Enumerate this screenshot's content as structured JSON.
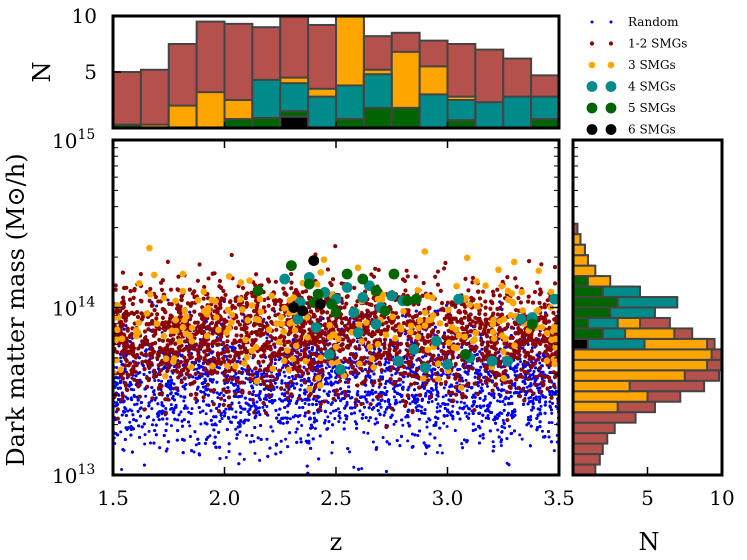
{
  "chart_data": {
    "type": "scatter",
    "x_label": "z",
    "y_label": "Dark matter mass (M⊙/h)",
    "xlim": [
      1.5,
      3.5
    ],
    "ylim_log10": [
      13,
      15
    ],
    "x_ticks": [
      "1.5",
      "2.0",
      "2.5",
      "3.0",
      "3.5"
    ],
    "y_ticks": [
      {
        "base": "10",
        "exp": "13"
      },
      {
        "base": "10",
        "exp": "14"
      },
      {
        "base": "10",
        "exp": "15"
      }
    ],
    "legend": [
      {
        "label": "Random",
        "color": "#0000ee"
      },
      {
        "label": "1-2 SMGs",
        "color": "#8b0000"
      },
      {
        "label": "3 SMGs",
        "color": "#ffa500"
      },
      {
        "label": "4 SMGs",
        "color": "#008b8b"
      },
      {
        "label": "5 SMGs",
        "color": "#006400"
      },
      {
        "label": "6 SMGs",
        "color": "#000000"
      }
    ],
    "colors": {
      "random": "#0000ee",
      "smg12_point": "#8b0000",
      "smg12_bar": "#b5514d",
      "smg3": "#ffa500",
      "smg4": "#008b8b",
      "smg5": "#006400",
      "smg6": "#000000"
    },
    "top_hist": {
      "xlabel": "",
      "ylabel": "N",
      "ylim": [
        0,
        10
      ],
      "y_ticks": [
        "5",
        "10"
      ],
      "bins": [
        1.5,
        1.625,
        1.75,
        1.875,
        2.0,
        2.125,
        2.25,
        2.375,
        2.5,
        2.625,
        2.75,
        2.875,
        3.0,
        3.125,
        3.25,
        3.375,
        3.5
      ],
      "series": [
        {
          "name": "1-2 SMGs",
          "values": [
            5.0,
            5.2,
            7.5,
            9.5,
            9.3,
            9.0,
            10.0,
            9.2,
            9.5,
            8.2,
            8.5,
            7.8,
            7.5,
            7.0,
            6.2,
            4.7
          ]
        },
        {
          "name": "3 SMGs",
          "values": [
            0,
            0.3,
            2.0,
            3.2,
            2.5,
            2.3,
            4.5,
            3.5,
            10.0,
            5.2,
            6.8,
            5.5,
            2.8,
            0,
            0,
            1.5
          ]
        },
        {
          "name": "4 SMGs",
          "values": [
            0,
            0,
            0,
            0,
            0,
            4.3,
            4.0,
            2.8,
            3.8,
            4.8,
            0,
            3.0,
            2.5,
            2.3,
            2.8,
            2.8
          ]
        },
        {
          "name": "5 SMGs",
          "values": [
            0.3,
            0,
            0,
            0,
            0.8,
            0.9,
            1.5,
            0,
            0.8,
            1.8,
            1.8,
            0,
            0.7,
            0,
            0,
            0.8
          ]
        },
        {
          "name": "6 SMGs",
          "values": [
            0,
            0,
            0,
            0,
            0,
            0,
            1.0,
            0,
            0,
            0,
            0,
            0,
            0,
            0,
            0,
            0
          ]
        }
      ]
    },
    "right_hist": {
      "xlabel": "N",
      "xlim": [
        0,
        10
      ],
      "x_ticks": [
        "5",
        "10"
      ],
      "bins_log10_mass": [
        13.0,
        13.0625,
        13.125,
        13.1875,
        13.25,
        13.3125,
        13.375,
        13.4375,
        13.5,
        13.5625,
        13.625,
        13.6875,
        13.75,
        13.8125,
        13.875,
        13.9375,
        14.0,
        14.0625,
        14.125,
        14.1875,
        14.25,
        14.3125,
        14.375,
        14.4375,
        14.5
      ],
      "series": [
        {
          "name": "1-2 SMGs",
          "values": [
            1.5,
            1.8,
            2.0,
            2.3,
            2.8,
            4.2,
            5.5,
            7.2,
            8.8,
            9.8,
            10.0,
            10.0,
            9.5,
            8.0,
            6.5,
            5.2,
            4.0,
            3.0,
            2.0,
            1.2,
            1.0,
            0.8,
            0.5,
            0.3
          ]
        },
        {
          "name": "3 SMGs",
          "values": [
            0,
            0,
            0,
            0,
            0,
            0,
            3.0,
            5.0,
            3.8,
            7.5,
            9.0,
            9.3,
            9.0,
            6.8,
            4.5,
            3.0,
            4.5,
            4.0,
            2.5,
            1.5,
            1.0,
            0.8,
            0.5,
            0
          ]
        },
        {
          "name": "4 SMGs",
          "values": [
            0,
            0,
            0,
            0,
            0,
            0,
            0,
            0,
            0,
            0,
            0,
            0,
            4.8,
            3.5,
            3.0,
            5.5,
            7.0,
            4.5,
            0,
            0,
            0,
            0,
            0,
            0
          ]
        },
        {
          "name": "5 SMGs",
          "values": [
            0,
            0,
            0,
            0,
            0,
            0,
            0,
            0,
            0,
            0,
            0,
            0,
            0,
            2.0,
            1.0,
            2.5,
            3.0,
            2.0,
            1.0,
            0,
            0,
            0,
            0,
            0
          ]
        },
        {
          "name": "6 SMGs",
          "values": [
            0,
            0,
            0,
            0,
            0,
            0,
            0,
            0,
            0,
            0,
            0,
            0,
            1.0,
            0,
            0,
            0,
            0,
            0,
            0,
            0,
            0,
            0,
            0,
            0
          ]
        }
      ]
    },
    "scatter_groups": [
      {
        "name": "Random",
        "count": 5200,
        "z_range": [
          1.5,
          3.5
        ],
        "log_mass_mean": 13.55,
        "log_mass_sd": 0.19,
        "log_mass_range": [
          13.0,
          14.35
        ]
      },
      {
        "name": "1-2 SMGs",
        "count": 2400,
        "z_range": [
          1.5,
          3.5
        ],
        "log_mass_mean": 13.83,
        "log_mass_sd": 0.17,
        "log_mass_range": [
          13.05,
          14.65
        ]
      },
      {
        "name": "3 SMGs",
        "count": 240,
        "z_range": [
          1.5,
          3.5
        ],
        "log_mass_mean": 13.9,
        "log_mass_sd": 0.17,
        "log_mass_range": [
          13.05,
          14.45
        ]
      },
      {
        "name": "4 SMGs",
        "points": [
          [
            2.27,
            14.17
          ],
          [
            2.34,
            14.03
          ],
          [
            2.38,
            14.18
          ],
          [
            2.45,
            14.09
          ],
          [
            2.5,
            14.05
          ],
          [
            2.55,
            14.12
          ],
          [
            2.58,
            13.97
          ],
          [
            2.62,
            14.06
          ],
          [
            2.65,
            14.13
          ],
          [
            2.7,
            14.0
          ],
          [
            2.75,
            14.07
          ],
          [
            2.8,
            14.04
          ],
          [
            2.33,
            13.93
          ],
          [
            2.41,
            13.88
          ],
          [
            2.47,
            13.72
          ],
          [
            2.52,
            13.63
          ],
          [
            2.6,
            13.85
          ],
          [
            2.68,
            13.9
          ],
          [
            2.78,
            13.68
          ],
          [
            2.85,
            13.75
          ],
          [
            2.9,
            13.64
          ],
          [
            2.95,
            13.8
          ],
          [
            3.0,
            13.66
          ],
          [
            3.05,
            14.05
          ],
          [
            3.1,
            13.7
          ],
          [
            3.2,
            13.68
          ],
          [
            3.27,
            13.68
          ],
          [
            3.33,
            13.93
          ],
          [
            3.38,
            13.94
          ],
          [
            3.48,
            14.05
          ]
        ]
      },
      {
        "name": "5 SMGs",
        "points": [
          [
            2.15,
            14.1
          ],
          [
            2.3,
            14.25
          ],
          [
            2.38,
            14.14
          ],
          [
            2.42,
            14.08
          ],
          [
            2.48,
            14.02
          ],
          [
            2.55,
            14.2
          ],
          [
            2.62,
            14.17
          ],
          [
            2.68,
            14.1
          ],
          [
            2.76,
            14.2
          ],
          [
            2.82,
            14.04
          ],
          [
            2.86,
            14.05
          ],
          [
            2.4,
            14.03
          ],
          [
            2.5,
            13.97
          ],
          [
            2.72,
            13.98
          ],
          [
            3.08,
            13.72
          ],
          [
            3.38,
            13.9
          ]
        ]
      },
      {
        "name": "6 SMGs",
        "points": [
          [
            2.4,
            14.28
          ],
          [
            2.31,
            14.0
          ],
          [
            2.43,
            14.02
          ],
          [
            2.35,
            13.98
          ]
        ]
      }
    ]
  }
}
